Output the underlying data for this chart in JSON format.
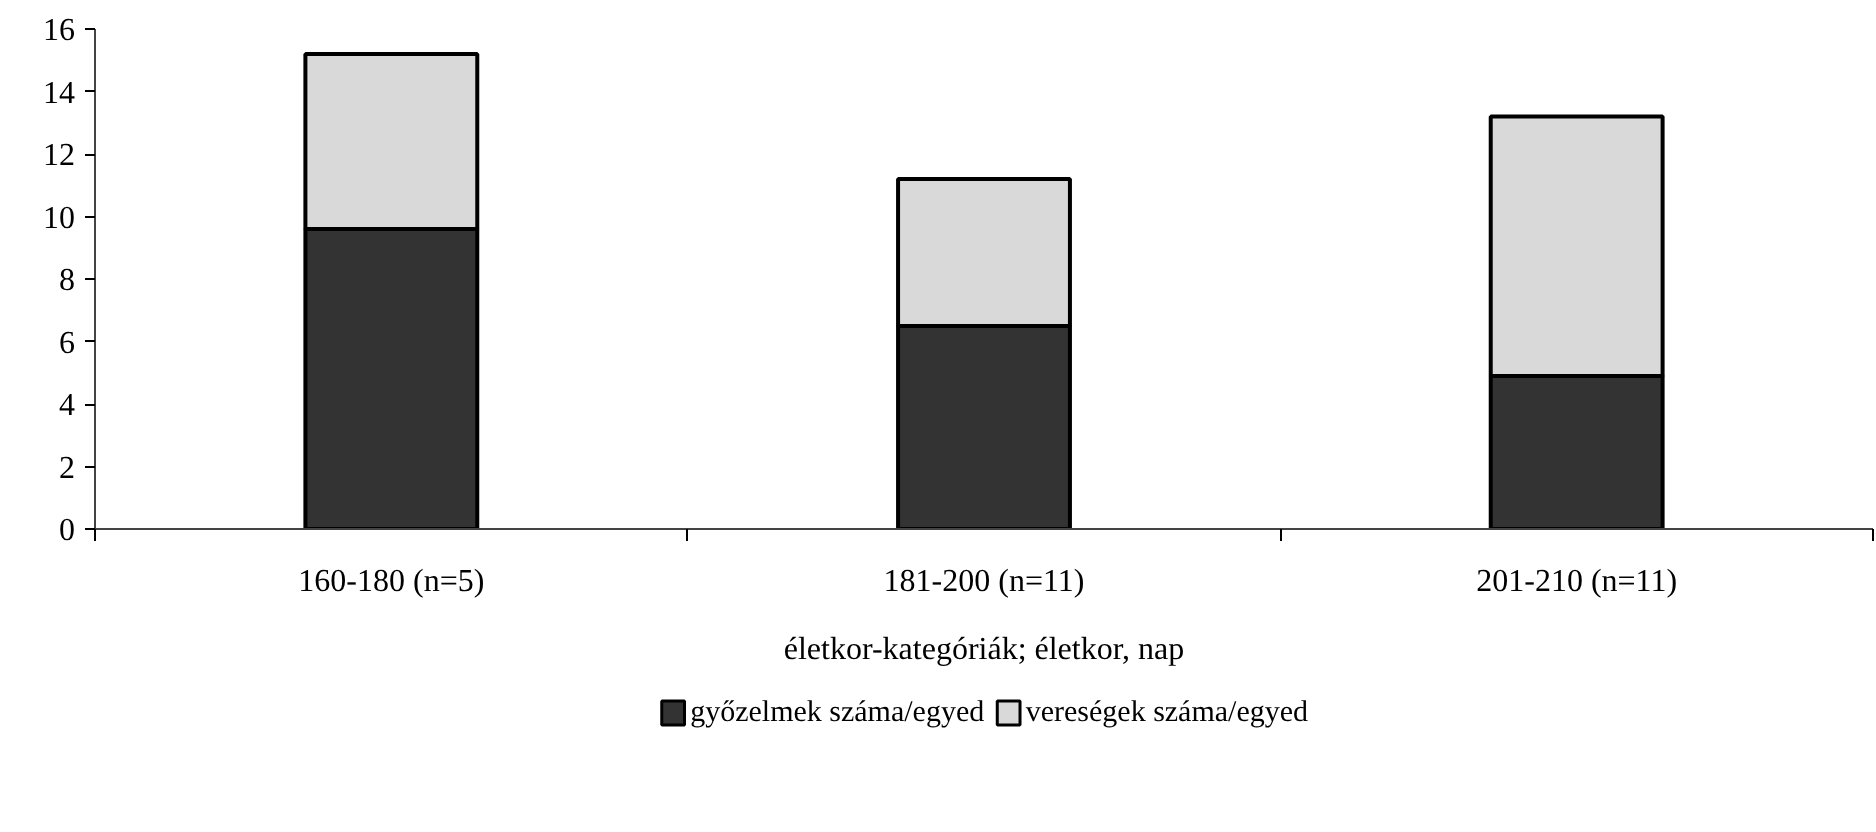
{
  "chart_data": {
    "type": "bar",
    "stacked": true,
    "categories": [
      "160-180 (n=5)",
      "181-200 (n=11)",
      "201-210 (n=11)"
    ],
    "xlabel": "életkor-kategóriák; életkor, nap",
    "series": [
      {
        "name": "győzelmek száma/egyed",
        "color": "#333333",
        "values": [
          9.6,
          6.5,
          4.9
        ]
      },
      {
        "name": "vereségek száma/egyed",
        "color": "#d9d9d9",
        "values": [
          5.6,
          4.7,
          8.3
        ]
      }
    ],
    "ylim": [
      0,
      16
    ],
    "yticks": [
      0,
      2,
      4,
      6,
      8,
      10,
      12,
      14,
      16
    ],
    "grid": false,
    "legend": "bottom"
  }
}
